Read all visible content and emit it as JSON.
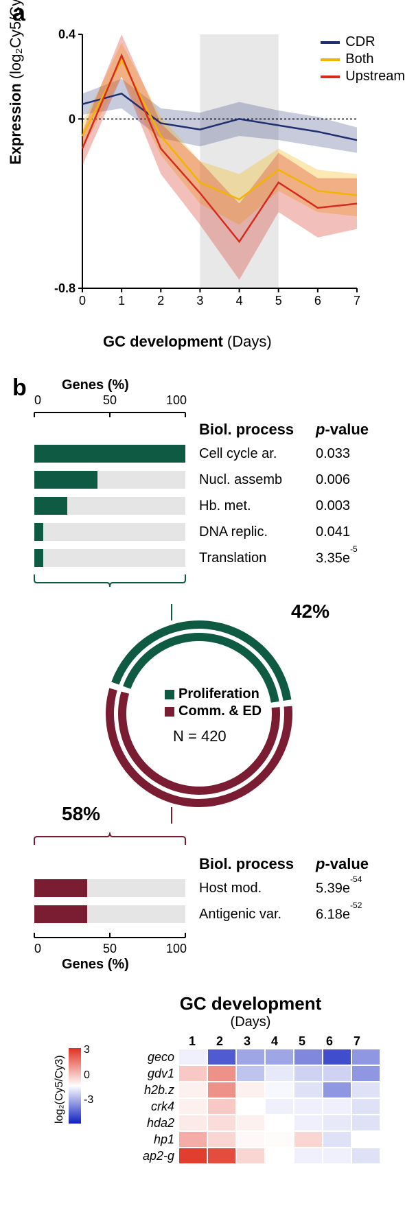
{
  "panel_a": {
    "label": "a",
    "ylabel_bold": "Expression",
    "ylabel_rest": " (log₂Cy5/Cy3)",
    "xlabel_bold": "GC development",
    "xlabel_rest": " (Days)",
    "xlim": [
      0,
      7
    ],
    "ylim": [
      -0.8,
      0.4
    ],
    "yticks": [
      -0.8,
      0,
      0.4
    ],
    "xticks": [
      0,
      1,
      2,
      3,
      4,
      5,
      6,
      7
    ],
    "shaded_region": [
      3,
      5
    ],
    "shaded_color": "#e8e8e8",
    "zero_line_color": "#000000",
    "series": {
      "CDR": {
        "color": "#1f2f6f",
        "fill_opacity": 0.25,
        "x": [
          0,
          1,
          2,
          3,
          4,
          5,
          6,
          7
        ],
        "y": [
          0.07,
          0.12,
          -0.02,
          -0.05,
          0.0,
          -0.03,
          -0.06,
          -0.1
        ],
        "lo": [
          0.02,
          0.05,
          -0.09,
          -0.13,
          -0.08,
          -0.1,
          -0.13,
          -0.16
        ],
        "hi": [
          0.12,
          0.19,
          0.05,
          0.03,
          0.08,
          0.04,
          0.01,
          -0.04
        ]
      },
      "Both": {
        "color": "#f2b400",
        "fill_opacity": 0.3,
        "x": [
          0,
          1,
          2,
          3,
          4,
          5,
          6,
          7
        ],
        "y": [
          -0.08,
          0.28,
          -0.08,
          -0.3,
          -0.38,
          -0.24,
          -0.34,
          -0.36
        ],
        "lo": [
          -0.14,
          0.2,
          -0.17,
          -0.4,
          -0.5,
          -0.34,
          -0.44,
          -0.46
        ],
        "hi": [
          -0.02,
          0.36,
          0.01,
          -0.2,
          -0.26,
          -0.14,
          -0.24,
          -0.26
        ]
      },
      "Upstream": {
        "color": "#d62a1f",
        "fill_opacity": 0.3,
        "x": [
          0,
          1,
          2,
          3,
          4,
          5,
          6,
          7
        ],
        "y": [
          -0.14,
          0.3,
          -0.14,
          -0.35,
          -0.58,
          -0.3,
          -0.42,
          -0.4
        ],
        "lo": [
          -0.22,
          0.2,
          -0.26,
          -0.5,
          -0.76,
          -0.44,
          -0.56,
          -0.52
        ],
        "hi": [
          -0.06,
          0.4,
          -0.02,
          -0.2,
          -0.4,
          -0.16,
          -0.28,
          -0.28
        ]
      }
    },
    "legend_order": [
      "CDR",
      "Both",
      "Upstream"
    ]
  },
  "panel_b": {
    "label": "b",
    "axis_title": "Genes (%)",
    "axis_ticks": [
      0,
      50,
      100
    ],
    "header_process": "Biol. process",
    "header_pval_italic": "p",
    "header_pval_rest": "-value",
    "top_color": "#0f5a42",
    "bot_color": "#7a1c32",
    "top_rows": [
      {
        "pct": 100,
        "label": "Cell cycle ar.",
        "pval": "0.033"
      },
      {
        "pct": 42,
        "label": "Nucl. assemb",
        "pval": "0.006"
      },
      {
        "pct": 22,
        "label": "Hb. met.",
        "pval": "0.003"
      },
      {
        "pct": 6,
        "label": "DNA replic.",
        "pval": "0.041"
      },
      {
        "pct": 6,
        "label": "Translation",
        "pval": "3.35e",
        "exp": "-5"
      }
    ],
    "bot_rows": [
      {
        "pct": 35,
        "label": "Host mod.",
        "pval": "5.39e",
        "exp": "-54"
      },
      {
        "pct": 35,
        "label": "Antigenic var.",
        "pval": "6.18e",
        "exp": "-52"
      }
    ],
    "donut": {
      "top_pct": 42,
      "bot_pct": 58,
      "top_pct_label": "42%",
      "bot_pct_label": "58%",
      "legend_top": "Proliferation",
      "legend_bot": "Comm. & ED",
      "n_label": "N = 420"
    }
  },
  "panel_c": {
    "title": "GC development",
    "subtitle": "(Days)",
    "days": [
      "1",
      "2",
      "3",
      "4",
      "5",
      "6",
      "7"
    ],
    "colorbar_label": "log₂(Cy5/Cy3)",
    "vmin": -3,
    "vmax": 3,
    "cb_ticks": [
      "3",
      "0",
      "-3"
    ],
    "color_neg": "#1020c0",
    "color_zero": "#ffffff",
    "color_pos": "#e03020",
    "genes": [
      {
        "name": "geco",
        "vals": [
          -0.2,
          -2.2,
          -1.2,
          -1.2,
          -1.6,
          -2.4,
          -1.4
        ]
      },
      {
        "name": "gdv1",
        "vals": [
          0.8,
          1.6,
          -0.8,
          -0.3,
          -0.6,
          -0.6,
          -1.4
        ]
      },
      {
        "name": "h2b.z",
        "vals": [
          0.2,
          1.6,
          0.2,
          -0.1,
          -0.4,
          -1.4,
          -0.4
        ]
      },
      {
        "name": "crk4",
        "vals": [
          0.2,
          0.8,
          0.0,
          -0.2,
          -0.2,
          -0.2,
          -0.4
        ]
      },
      {
        "name": "hda2",
        "vals": [
          0.3,
          0.5,
          0.2,
          0.0,
          -0.2,
          -0.3,
          -0.4
        ]
      },
      {
        "name": "hp1",
        "vals": [
          1.2,
          0.6,
          0.1,
          0.05,
          0.6,
          -0.4,
          0.0
        ]
      },
      {
        "name": "ap2-g",
        "vals": [
          2.8,
          2.6,
          0.6,
          0.0,
          -0.2,
          -0.2,
          -0.4
        ]
      }
    ]
  }
}
